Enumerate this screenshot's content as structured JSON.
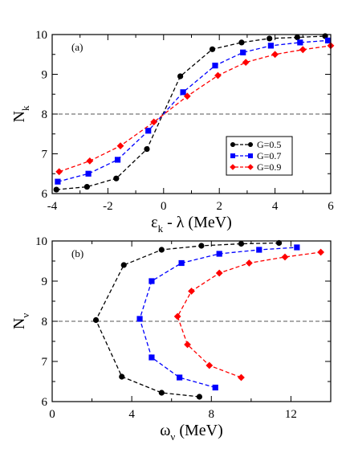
{
  "chart_data": [
    {
      "type": "line",
      "panel_label": "(a)",
      "xlabel_main": "ε",
      "xlabel_sub": "k",
      "xlabel_rest": " - λ (MeV)",
      "ylabel_main": "N",
      "ylabel_sub": "k",
      "xlim": [
        -4,
        6
      ],
      "ylim": [
        6,
        10
      ],
      "xticks": [
        -4,
        -2,
        0,
        2,
        4,
        6
      ],
      "yticks": [
        6,
        7,
        8,
        9,
        10
      ],
      "reference_line": {
        "y": 8,
        "style": "dashed"
      },
      "legend_position": "middle-right",
      "series": [
        {
          "name": "G=0.5",
          "color": "#000000",
          "marker": "circle",
          "x": [
            -3.85,
            -2.75,
            -1.7,
            -0.6,
            0.6,
            1.75,
            2.8,
            3.8,
            4.8,
            5.8
          ],
          "y": [
            6.1,
            6.17,
            6.38,
            7.12,
            8.95,
            9.63,
            9.8,
            9.9,
            9.93,
            9.96
          ]
        },
        {
          "name": "G=0.7",
          "color": "#0000ff",
          "marker": "square",
          "x": [
            -3.8,
            -2.7,
            -1.65,
            -0.55,
            0.7,
            1.85,
            2.85,
            3.85,
            4.9,
            5.9
          ],
          "y": [
            6.3,
            6.5,
            6.85,
            7.58,
            8.55,
            9.22,
            9.55,
            9.72,
            9.8,
            9.85
          ]
        },
        {
          "name": "G=0.9",
          "color": "#ff0000",
          "marker": "diamond",
          "x": [
            -3.75,
            -2.65,
            -1.55,
            -0.35,
            0.85,
            1.95,
            2.95,
            4.0,
            5.0,
            6.0
          ],
          "y": [
            6.55,
            6.82,
            7.2,
            7.8,
            8.45,
            8.97,
            9.3,
            9.5,
            9.62,
            9.72
          ]
        }
      ]
    },
    {
      "type": "line",
      "panel_label": "(b)",
      "xlabel_main": "ω",
      "xlabel_sub": "ν",
      "xlabel_rest": " (MeV)",
      "ylabel_main": "N",
      "ylabel_sub": "ν",
      "xlim": [
        0,
        14
      ],
      "ylim": [
        6,
        10
      ],
      "xticks": [
        0,
        4,
        8,
        12
      ],
      "yticks": [
        6,
        7,
        8,
        9,
        10
      ],
      "reference_line": {
        "y": 8,
        "style": "dashed"
      },
      "series": [
        {
          "name": "G=0.5",
          "color": "#000000",
          "marker": "circle",
          "x": [
            7.4,
            5.5,
            3.5,
            2.2,
            3.6,
            5.5,
            7.5,
            9.5,
            11.4
          ],
          "y": [
            6.12,
            6.22,
            6.62,
            8.03,
            9.4,
            9.78,
            9.88,
            9.93,
            9.95
          ]
        },
        {
          "name": "G=0.7",
          "color": "#0000ff",
          "marker": "square",
          "x": [
            8.2,
            6.4,
            5.0,
            4.4,
            5.0,
            6.5,
            8.4,
            10.4,
            12.3
          ],
          "y": [
            6.35,
            6.6,
            7.1,
            8.06,
            9.0,
            9.45,
            9.68,
            9.78,
            9.84
          ]
        },
        {
          "name": "G=0.9",
          "color": "#ff0000",
          "marker": "diamond",
          "x": [
            9.5,
            7.9,
            6.8,
            6.3,
            7.0,
            8.4,
            9.9,
            11.7,
            13.5
          ],
          "y": [
            6.6,
            6.9,
            7.42,
            8.12,
            8.75,
            9.2,
            9.45,
            9.6,
            9.72
          ]
        }
      ]
    }
  ]
}
